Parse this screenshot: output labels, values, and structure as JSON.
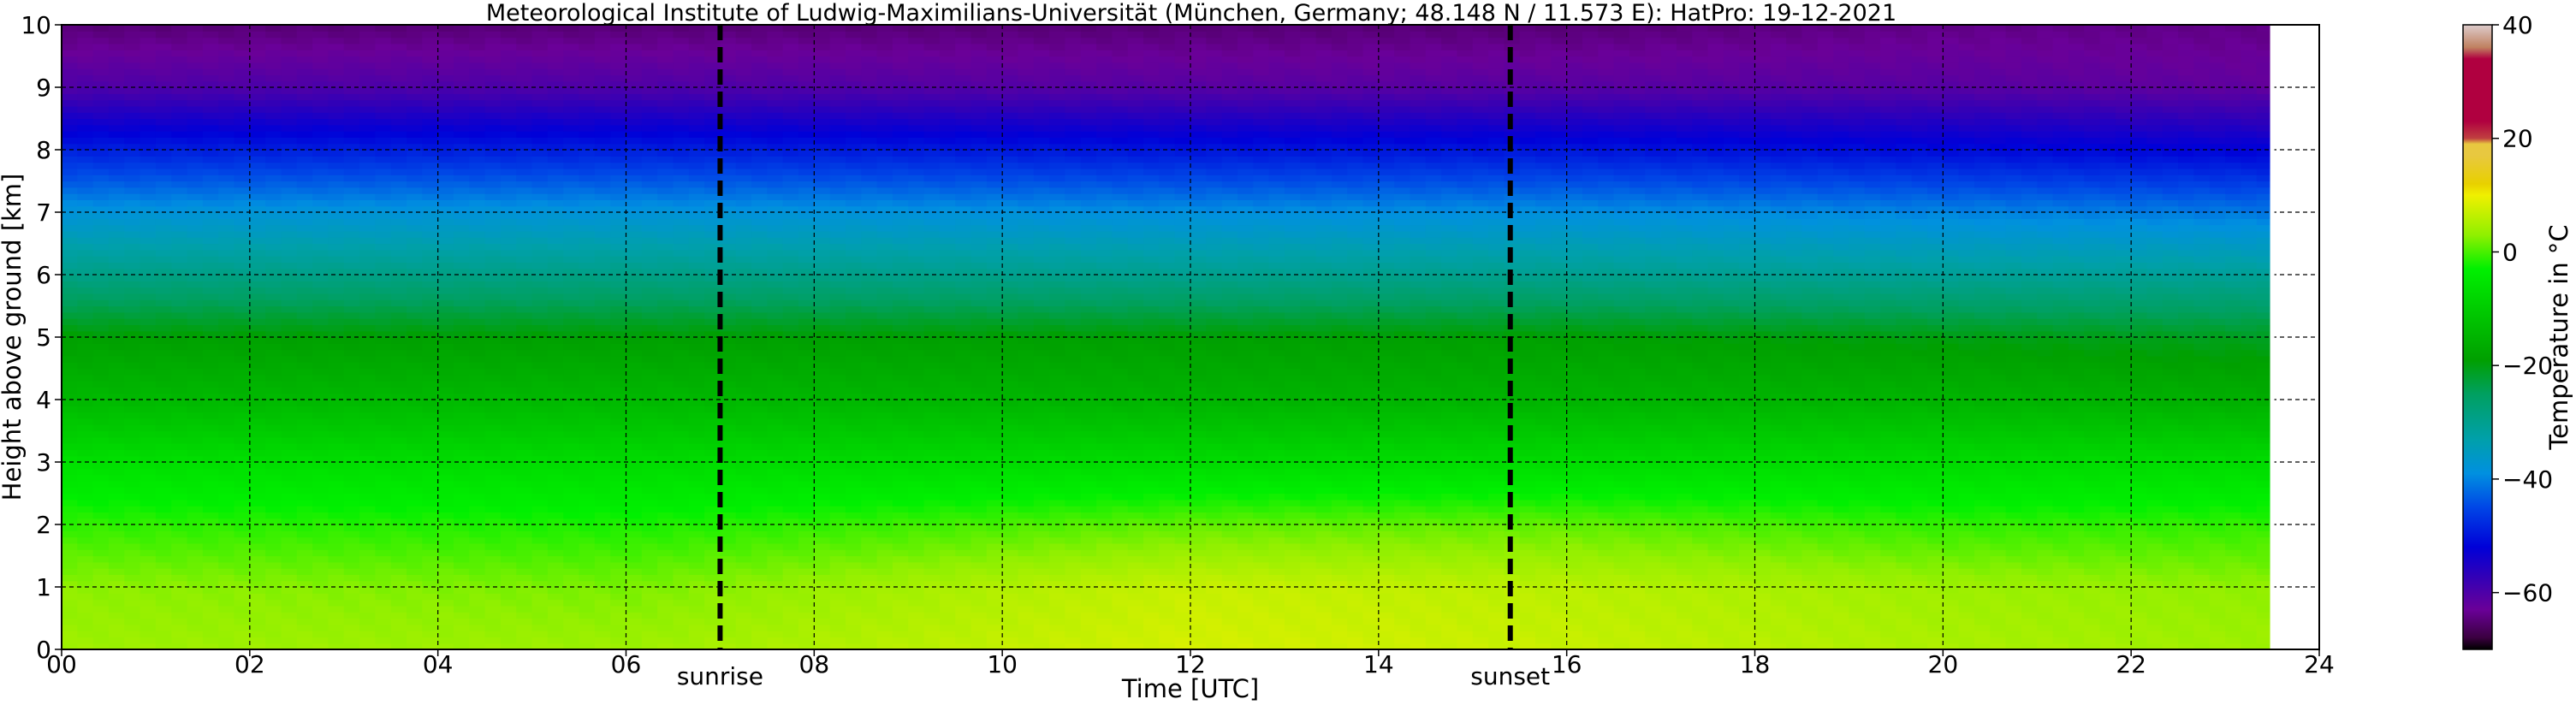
{
  "chart_data": {
    "type": "heatmap",
    "title": "Meteorological Institute of Ludwig-Maximilians-Universität (München, Germany; 48.148 N / 11.573 E):    HatPro: 19-12-2021",
    "xlabel": "Time [UTC]",
    "ylabel": "Height above ground [km]",
    "xlim": [
      0,
      24
    ],
    "ylim": [
      0,
      10
    ],
    "x_ticks": [
      "00",
      "02",
      "04",
      "06",
      "08",
      "10",
      "12",
      "14",
      "16",
      "18",
      "20",
      "22",
      "24"
    ],
    "y_ticks": [
      "0",
      "1",
      "2",
      "3",
      "4",
      "5",
      "6",
      "7",
      "8",
      "9",
      "10"
    ],
    "grid": true,
    "events": [
      {
        "label": "sunrise",
        "time": 7.0
      },
      {
        "label": "sunset",
        "time": 15.4
      }
    ],
    "data_end_time": 23.5,
    "colorbar": {
      "label": "Temperature in $^\\circ$C",
      "ticks": [
        "40",
        "20",
        "0",
        "−20",
        "−40",
        "−60"
      ],
      "range": [
        -70,
        40
      ]
    },
    "temperature_profiles": [
      {
        "time": 0,
        "heights_km": [
          0,
          1,
          2,
          3,
          4,
          5,
          6,
          7,
          8,
          9,
          10
        ],
        "temps_c": [
          4,
          3,
          -1,
          -6,
          -14,
          -19,
          -29,
          -38,
          -49,
          -60,
          -65
        ]
      },
      {
        "time": 6,
        "heights_km": [
          0,
          1,
          2,
          3,
          4,
          5,
          6,
          7,
          8,
          9,
          10
        ],
        "temps_c": [
          4,
          2,
          -2,
          -7,
          -14,
          -19,
          -29,
          -38,
          -49,
          -60,
          -65
        ]
      },
      {
        "time": 12,
        "heights_km": [
          0,
          1,
          2,
          3,
          4,
          5,
          6,
          7,
          8,
          9,
          10
        ],
        "temps_c": [
          8,
          7,
          1,
          -7,
          -15,
          -19,
          -30,
          -39,
          -50,
          -61,
          -65
        ]
      },
      {
        "time": 16,
        "heights_km": [
          0,
          1,
          2,
          3,
          4,
          5,
          6,
          7,
          8,
          9,
          10
        ],
        "temps_c": [
          7,
          6,
          1,
          -7,
          -15,
          -19,
          -30,
          -39,
          -50,
          -61,
          -65
        ]
      },
      {
        "time": 20,
        "heights_km": [
          0,
          1,
          2,
          3,
          4,
          5,
          6,
          7,
          8,
          9,
          10
        ],
        "temps_c": [
          5,
          4,
          -1,
          -7,
          -15,
          -20,
          -31,
          -40,
          -51,
          -61,
          -64
        ]
      },
      {
        "time": 23.5,
        "heights_km": [
          0,
          1,
          2,
          3,
          4,
          5,
          6,
          7,
          8,
          9,
          10
        ],
        "temps_c": [
          4,
          3,
          -1,
          -7,
          -16,
          -21,
          -31,
          -41,
          -52,
          -62,
          -64
        ]
      }
    ],
    "colormap": [
      {
        "t": -70,
        "color": "#000000"
      },
      {
        "t": -68,
        "color": "#3a003f"
      },
      {
        "t": -63,
        "color": "#6a0098"
      },
      {
        "t": -57,
        "color": "#3000b8"
      },
      {
        "t": -52,
        "color": "#0000d8"
      },
      {
        "t": -45,
        "color": "#0046e6"
      },
      {
        "t": -39,
        "color": "#0090e0"
      },
      {
        "t": -33,
        "color": "#00a0aa"
      },
      {
        "t": -25,
        "color": "#00a060"
      },
      {
        "t": -19,
        "color": "#00a000"
      },
      {
        "t": -10,
        "color": "#00cc00"
      },
      {
        "t": -3,
        "color": "#00f000"
      },
      {
        "t": 3,
        "color": "#90f000"
      },
      {
        "t": 10,
        "color": "#f0f000"
      },
      {
        "t": 12,
        "color": "#e8d000"
      },
      {
        "t": 17,
        "color": "#e8c840"
      },
      {
        "t": 19,
        "color": "#e8c840"
      },
      {
        "t": 20,
        "color": "#c04040"
      },
      {
        "t": 23,
        "color": "#b00040"
      },
      {
        "t": 34,
        "color": "#b00040"
      },
      {
        "t": 36,
        "color": "#c08060"
      },
      {
        "t": 40,
        "color": "#ddcccc"
      }
    ]
  }
}
